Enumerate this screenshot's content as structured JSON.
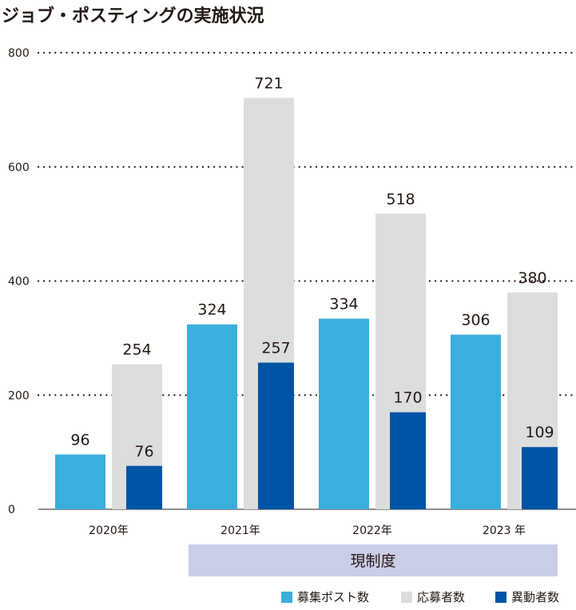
{
  "title": "ジョブ・ポスティングの実施状況",
  "period_band_label": "現制度",
  "colors": {
    "posts": "#3aaedc",
    "applicants": "#dcdddd",
    "transfers": "#0054a6",
    "period_band": "#c9cde6",
    "text": "#231815"
  },
  "legend": [
    {
      "label": "募集ポスト数",
      "color": "#3aaedc"
    },
    {
      "label": "応募者数",
      "color": "#dcdddd"
    },
    {
      "label": "異動者数",
      "color": "#0054a6"
    }
  ],
  "chart_data": {
    "type": "bar",
    "categories": [
      "2020年",
      "2021年",
      "2022年",
      "2023 年"
    ],
    "series": [
      {
        "name": "募集ポスト数",
        "values": [
          96,
          324,
          334,
          306
        ]
      },
      {
        "name": "応募者数",
        "values": [
          254,
          721,
          518,
          380
        ]
      },
      {
        "name": "異動者数",
        "values": [
          76,
          257,
          170,
          109
        ]
      }
    ],
    "ylim": [
      0,
      800
    ],
    "yticks": [
      0,
      200,
      400,
      600,
      800
    ],
    "grid": "dotted horizontal at 200, 400, 600, 800",
    "data_labels": true,
    "legend_position": "bottom-right"
  }
}
